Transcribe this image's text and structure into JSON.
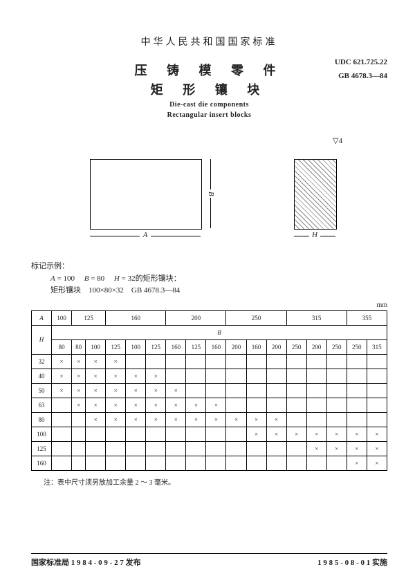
{
  "header": {
    "nation": "中华人民共和国国家标准",
    "title_zh_1": "压 铸 模 零 件",
    "title_zh_2": "矩 形 镶 块",
    "title_en_1": "Die-cast die components",
    "title_en_2": "Rectangular insert blocks",
    "udc": "UDC 621.725.22",
    "std": "GB 4678.3—84"
  },
  "figure": {
    "surface_symbol": "▽4",
    "dim_A": "A",
    "dim_B": "B",
    "dim_H": "H"
  },
  "marking": {
    "label": "标记示例：",
    "line1_a": "A",
    "line1_a_val": "= 100",
    "line1_b": "B",
    "line1_b_val": "= 80",
    "line1_h": "H",
    "line1_h_val": "= 32的矩形镶块：",
    "line2": "矩形镶块　100×80×32　GB 4678.3—84"
  },
  "unit": "mm",
  "table": {
    "col_A_header": "A",
    "col_H_header": "H",
    "row_B_header": "B",
    "a_values": [
      "100",
      "125",
      "160",
      "200",
      "250",
      "315",
      "355"
    ],
    "b_values": [
      "80",
      "80",
      "100",
      "125",
      "100",
      "125",
      "160",
      "125",
      "160",
      "200",
      "160",
      "200",
      "250",
      "200",
      "250",
      "250",
      "315"
    ],
    "h_rows": [
      {
        "h": "32",
        "marks": [
          1,
          1,
          1,
          1,
          0,
          0,
          0,
          0,
          0,
          0,
          0,
          0,
          0,
          0,
          0,
          0,
          0
        ]
      },
      {
        "h": "40",
        "marks": [
          1,
          1,
          1,
          1,
          1,
          1,
          0,
          0,
          0,
          0,
          0,
          0,
          0,
          0,
          0,
          0,
          0
        ]
      },
      {
        "h": "50",
        "marks": [
          1,
          1,
          1,
          1,
          1,
          1,
          1,
          0,
          0,
          0,
          0,
          0,
          0,
          0,
          0,
          0,
          0
        ]
      },
      {
        "h": "63",
        "marks": [
          0,
          1,
          1,
          1,
          1,
          1,
          1,
          1,
          1,
          0,
          0,
          0,
          0,
          0,
          0,
          0,
          0
        ]
      },
      {
        "h": "80",
        "marks": [
          0,
          0,
          1,
          1,
          1,
          1,
          1,
          1,
          1,
          1,
          1,
          1,
          0,
          0,
          0,
          0,
          0
        ]
      },
      {
        "h": "100",
        "marks": [
          0,
          0,
          0,
          0,
          0,
          0,
          0,
          0,
          0,
          0,
          1,
          1,
          1,
          1,
          1,
          1,
          1
        ]
      },
      {
        "h": "125",
        "marks": [
          0,
          0,
          0,
          0,
          0,
          0,
          0,
          0,
          0,
          0,
          0,
          0,
          0,
          1,
          1,
          1,
          1
        ]
      },
      {
        "h": "160",
        "marks": [
          0,
          0,
          0,
          0,
          0,
          0,
          0,
          0,
          0,
          0,
          0,
          0,
          0,
          0,
          0,
          1,
          1
        ]
      }
    ]
  },
  "note": "注：表中尺寸须另放加工余量 2 ～ 3 毫米。",
  "footer": {
    "left": "国家标准局 1 9 8 4 - 0 9 - 2 7 发布",
    "right": "1 9 8 5 - 0 8 - 0 1 实施"
  }
}
